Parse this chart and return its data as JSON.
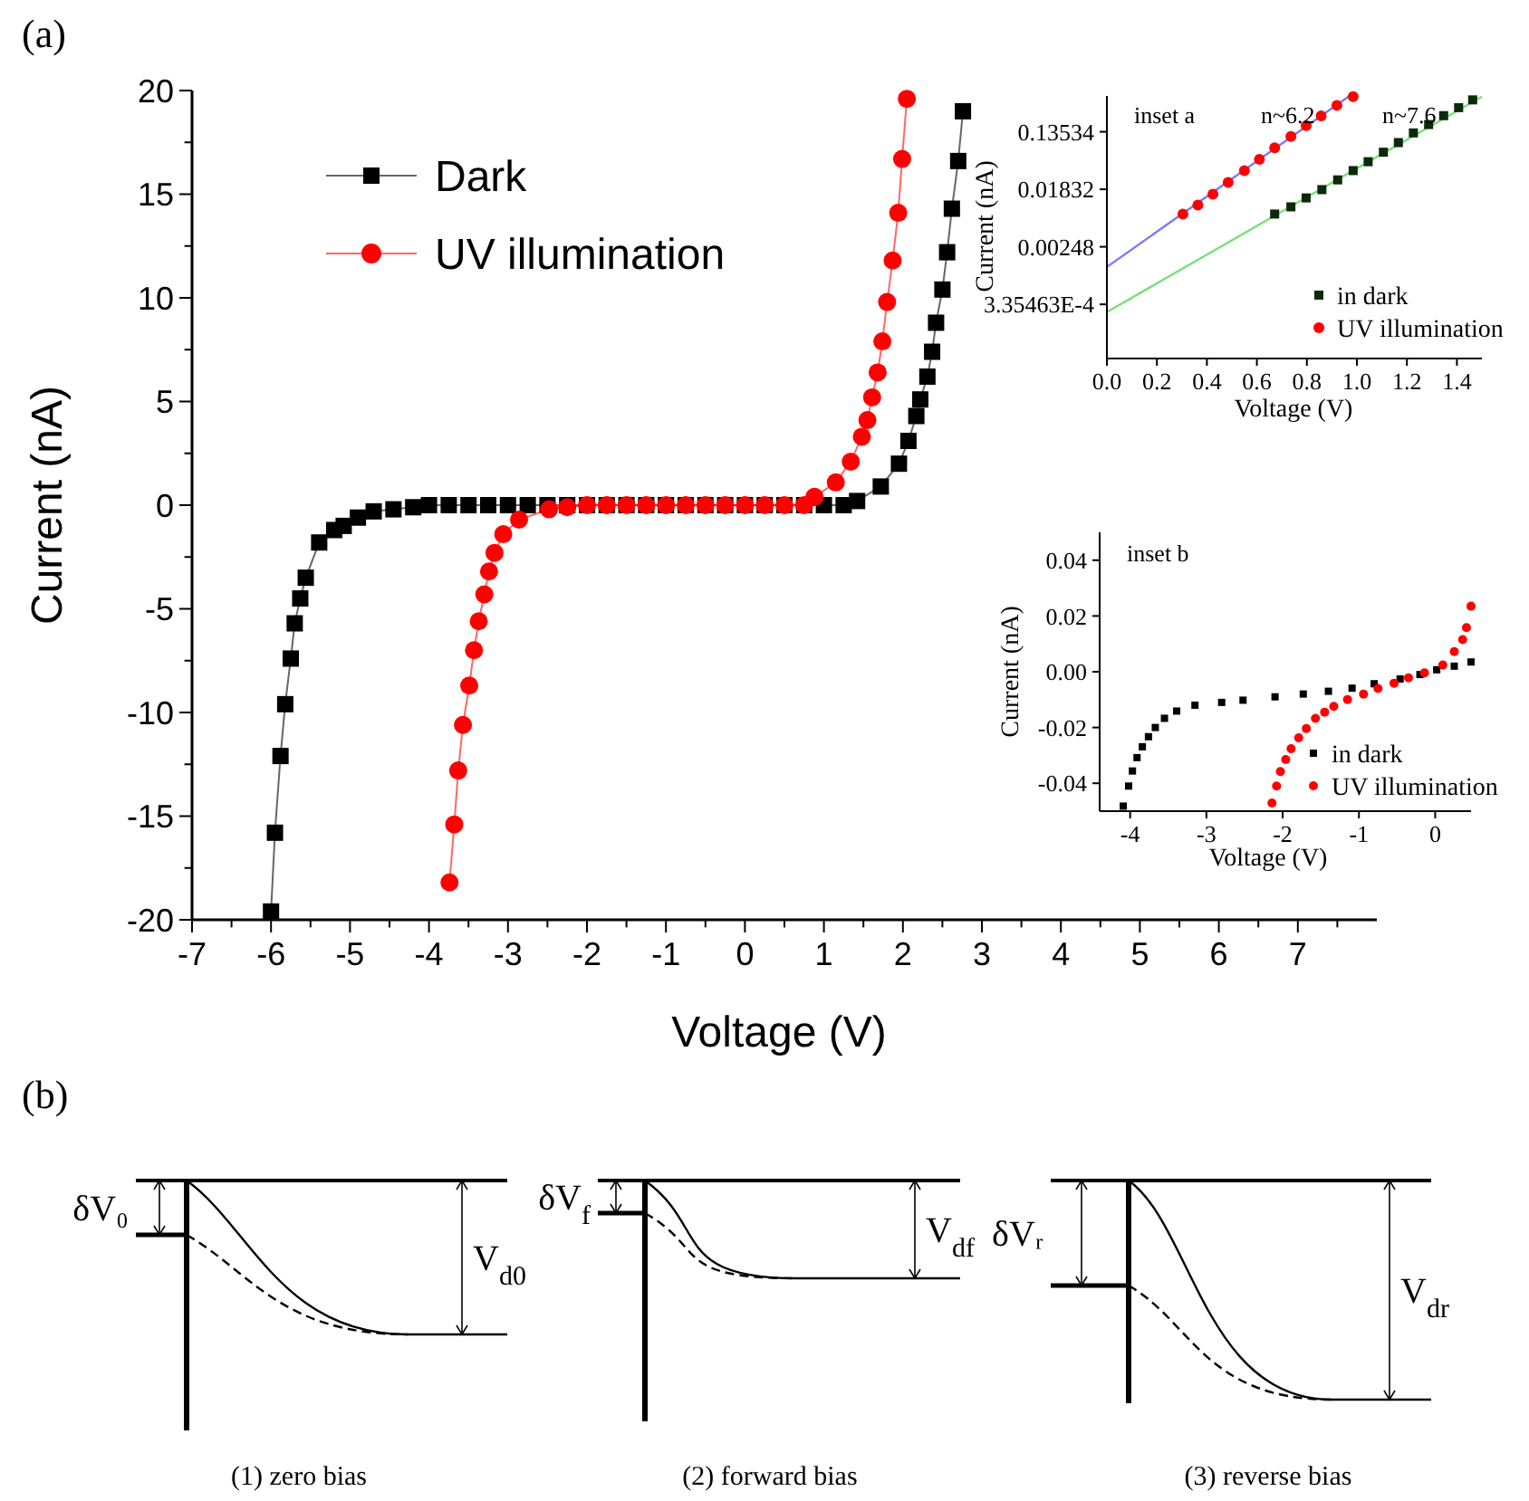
{
  "chart_data": [
    {
      "type": "line",
      "title": "(a)",
      "xlabel": "Voltage (V)",
      "ylabel": "Current (nA)",
      "xlim": [
        -7,
        8
      ],
      "ylim": [
        -20,
        20
      ],
      "xticks": [
        -7,
        {
          "value": -6.5,
          "label": null
        },
        -6,
        {
          "value": -5.5,
          "label": null
        },
        -5,
        {
          "value": -4.5,
          "label": null
        },
        -4,
        {
          "value": -3.5,
          "label": null
        },
        -3,
        {
          "value": -2.5,
          "label": null
        },
        -2,
        {
          "value": -1.5,
          "label": null
        },
        -1,
        {
          "value": -0.5,
          "label": null
        },
        0,
        {
          "value": 0.5,
          "label": null
        },
        1,
        {
          "value": 1.5,
          "label": null
        },
        2,
        {
          "value": 2.5,
          "label": null
        },
        3,
        {
          "value": 3.5,
          "label": null
        },
        4,
        {
          "value": 4.5,
          "label": null
        },
        5,
        {
          "value": 5.5,
          "label": null
        },
        6,
        {
          "value": 6.5,
          "label": null
        },
        7,
        {
          "value": 7.5,
          "label": null
        }
      ],
      "yticks": [
        -20,
        {
          "value": -17.5,
          "label": null
        },
        -15,
        {
          "value": -12.5,
          "label": null
        },
        -10,
        {
          "value": -7.5,
          "label": null
        },
        -5,
        {
          "value": -2.5,
          "label": null
        },
        0,
        {
          "value": 2.5,
          "label": null
        },
        5,
        {
          "value": 7.5,
          "label": null
        },
        10,
        {
          "value": 12.5,
          "label": null
        },
        15,
        {
          "value": 17.5,
          "label": null
        },
        20
      ],
      "legend": "top left",
      "grid": false,
      "series": [
        {
          "name": "Dark",
          "color": "#000000",
          "marker": "square",
          "x": [
            -6.0,
            -5.95,
            -5.88,
            -5.82,
            -5.75,
            -5.7,
            -5.63,
            -5.56,
            -5.39,
            -5.2,
            -5.08,
            -4.9,
            -4.7,
            -4.45,
            -4.2,
            -4.0,
            -3.75,
            -3.5,
            -3.25,
            -3.0,
            -2.75,
            -2.5,
            -2.25,
            -2.0,
            -1.75,
            -1.5,
            -1.25,
            -1.0,
            -0.75,
            -0.5,
            -0.25,
            0,
            0.25,
            0.5,
            0.75,
            1.0,
            1.25,
            1.42,
            1.72,
            1.95,
            2.07,
            2.17,
            2.22,
            2.31,
            2.37,
            2.42,
            2.5,
            2.56,
            2.62,
            2.7,
            2.76
          ],
          "values": [
            -19.6,
            -15.8,
            -12.1,
            -9.6,
            -7.4,
            -5.7,
            -4.5,
            -3.5,
            -1.8,
            -1.2,
            -1.0,
            -0.6,
            -0.3,
            -0.2,
            -0.1,
            0,
            0,
            0,
            0,
            0,
            0,
            0,
            0,
            0,
            0,
            0,
            0,
            0,
            0,
            0,
            0,
            0,
            0,
            0,
            0,
            0,
            0,
            0.2,
            0.9,
            2.0,
            3.1,
            4.3,
            5.1,
            6.2,
            7.4,
            8.8,
            10.4,
            12.2,
            14.3,
            16.6,
            19.0
          ]
        },
        {
          "name": "UV illumination",
          "color": "#ff0000",
          "marker": "circle",
          "x": [
            -3.74,
            -3.68,
            -3.63,
            -3.57,
            -3.49,
            -3.43,
            -3.37,
            -3.3,
            -3.24,
            -3.17,
            -3.06,
            -2.86,
            -2.48,
            -2.25,
            -2.0,
            -1.75,
            -1.5,
            -1.25,
            -1.0,
            -0.75,
            -0.5,
            -0.25,
            0,
            0.25,
            0.5,
            0.75,
            0.88,
            1.15,
            1.34,
            1.48,
            1.55,
            1.61,
            1.68,
            1.74,
            1.8,
            1.87,
            1.94,
            1.99,
            2.05
          ],
          "values": [
            -18.2,
            -15.4,
            -12.8,
            -10.6,
            -8.7,
            -7.0,
            -5.6,
            -4.3,
            -3.2,
            -2.3,
            -1.4,
            -0.7,
            -0.2,
            -0.1,
            0,
            0,
            0,
            0,
            0,
            0,
            0,
            0,
            0,
            0,
            0,
            0,
            0.4,
            1.1,
            2.1,
            3.3,
            4.1,
            5.2,
            6.4,
            7.9,
            9.8,
            11.8,
            14.1,
            16.7,
            19.6
          ]
        }
      ]
    },
    {
      "type": "scatter",
      "xlabel": "Voltage (V)",
      "ylabel": "Current (nA)",
      "log": "y",
      "xlim": [
        0,
        1.5
      ],
      "ylim": [
        5.1e-05,
        0.47
      ],
      "xticks": [
        {
          "value": 0,
          "label": "0.0"
        },
        0.2,
        0.4,
        0.6,
        0.8,
        {
          "value": 1,
          "label": "1.0"
        },
        1.2,
        1.4
      ],
      "yticks": [
        {
          "value": 0.000335463,
          "label": "3.35463E-4"
        },
        0.00248,
        0.01832,
        0.13534
      ],
      "legend": "bottom right",
      "annotations": [
        "inset a",
        "n~6.2",
        "n~7.6"
      ],
      "series": [
        {
          "type": "line",
          "color": "#7878ff",
          "marker": "none",
          "x": [
            0,
            0.97
          ],
          "values": [
            0.00123,
            0.47
          ]
        },
        {
          "type": "line",
          "color": "#78e078",
          "marker": "none",
          "x": [
            0,
            1.5
          ],
          "values": [
            0.000256,
            0.46
          ]
        },
        {
          "name": "in dark",
          "color": "#0a2a0a",
          "marker": "square",
          "x": [
            0.671,
            0.736,
            0.797,
            0.86,
            0.923,
            0.985,
            1.045,
            1.106,
            1.166,
            1.226,
            1.287,
            1.347,
            1.407,
            1.463
          ],
          "values": [
            0.00775,
            0.00995,
            0.01357,
            0.0181,
            0.0254,
            0.0351,
            0.0478,
            0.0665,
            0.0929,
            0.13,
            0.174,
            0.237,
            0.313,
            0.41
          ]
        },
        {
          "name": "UV illumination",
          "color": "#ff0000",
          "marker": "circle",
          "x": [
            0.304,
            0.364,
            0.424,
            0.485,
            0.55,
            0.61,
            0.671,
            0.736,
            0.797,
            0.857,
            0.92,
            0.985
          ],
          "values": [
            0.00775,
            0.01057,
            0.01546,
            0.0233,
            0.0351,
            0.0518,
            0.0773,
            0.115,
            0.167,
            0.236,
            0.339,
            0.46
          ]
        }
      ]
    },
    {
      "type": "scatter",
      "xlabel": "Voltage (V)",
      "ylabel": "Current (nA)",
      "xlim": [
        -4.4,
        0.47
      ],
      "ylim": [
        -0.05,
        0.05
      ],
      "xticks": [
        -4,
        -3,
        -2,
        -1,
        0
      ],
      "yticks": [
        -0.04,
        -0.02,
        {
          "value": 0,
          "label": "0.00"
        },
        0.02,
        0.04
      ],
      "legend": "bottom right",
      "annotations": [
        "inset b"
      ],
      "series": [
        {
          "name": "in dark",
          "color": "#000000",
          "marker": "square",
          "x": [
            -4.09,
            -4.02,
            -3.97,
            -3.91,
            -3.84,
            -3.76,
            -3.67,
            -3.55,
            -3.39,
            -3.15,
            -2.8,
            -2.52,
            -2.1,
            -1.73,
            -1.4,
            -1.09,
            -0.8,
            -0.46,
            -0.2,
            0.02,
            0.25,
            0.47
          ],
          "values": [
            -0.0482,
            -0.041,
            -0.0356,
            -0.0308,
            -0.0269,
            -0.0233,
            -0.02,
            -0.0167,
            -0.0141,
            -0.012,
            -0.011,
            -0.0102,
            -0.009,
            -0.008,
            -0.007,
            -0.0059,
            -0.0043,
            -0.0026,
            -0.001,
            0.0007,
            0.002,
            0.0035
          ]
        },
        {
          "name": "UV illumination",
          "color": "#ff0000",
          "marker": "circle",
          "x": [
            -2.14,
            -2.08,
            -2.03,
            -1.96,
            -1.89,
            -1.79,
            -1.69,
            -1.57,
            -1.45,
            -1.33,
            -1.15,
            -0.94,
            -0.75,
            -0.54,
            -0.35,
            -0.14,
            0.1,
            0.25,
            0.36,
            0.41,
            0.47
          ],
          "values": [
            -0.0471,
            -0.041,
            -0.0358,
            -0.0315,
            -0.0276,
            -0.0237,
            -0.0204,
            -0.0167,
            -0.0145,
            -0.0124,
            -0.01,
            -0.008,
            -0.006,
            -0.0041,
            -0.0022,
            -0.0004,
            0.0024,
            0.0072,
            0.0115,
            0.0158,
            0.0235
          ]
        }
      ]
    },
    {
      "type": "other",
      "title": "(b)",
      "annotations": [
        "δV₀",
        "V$_{d0}$",
        "(1) zero bias",
        "δV$_{f}$",
        "V$_{df}$",
        "(2) forward bias",
        "δVᵣ",
        "V$_{dr}$",
        "(3) reverse bias"
      ]
    }
  ]
}
